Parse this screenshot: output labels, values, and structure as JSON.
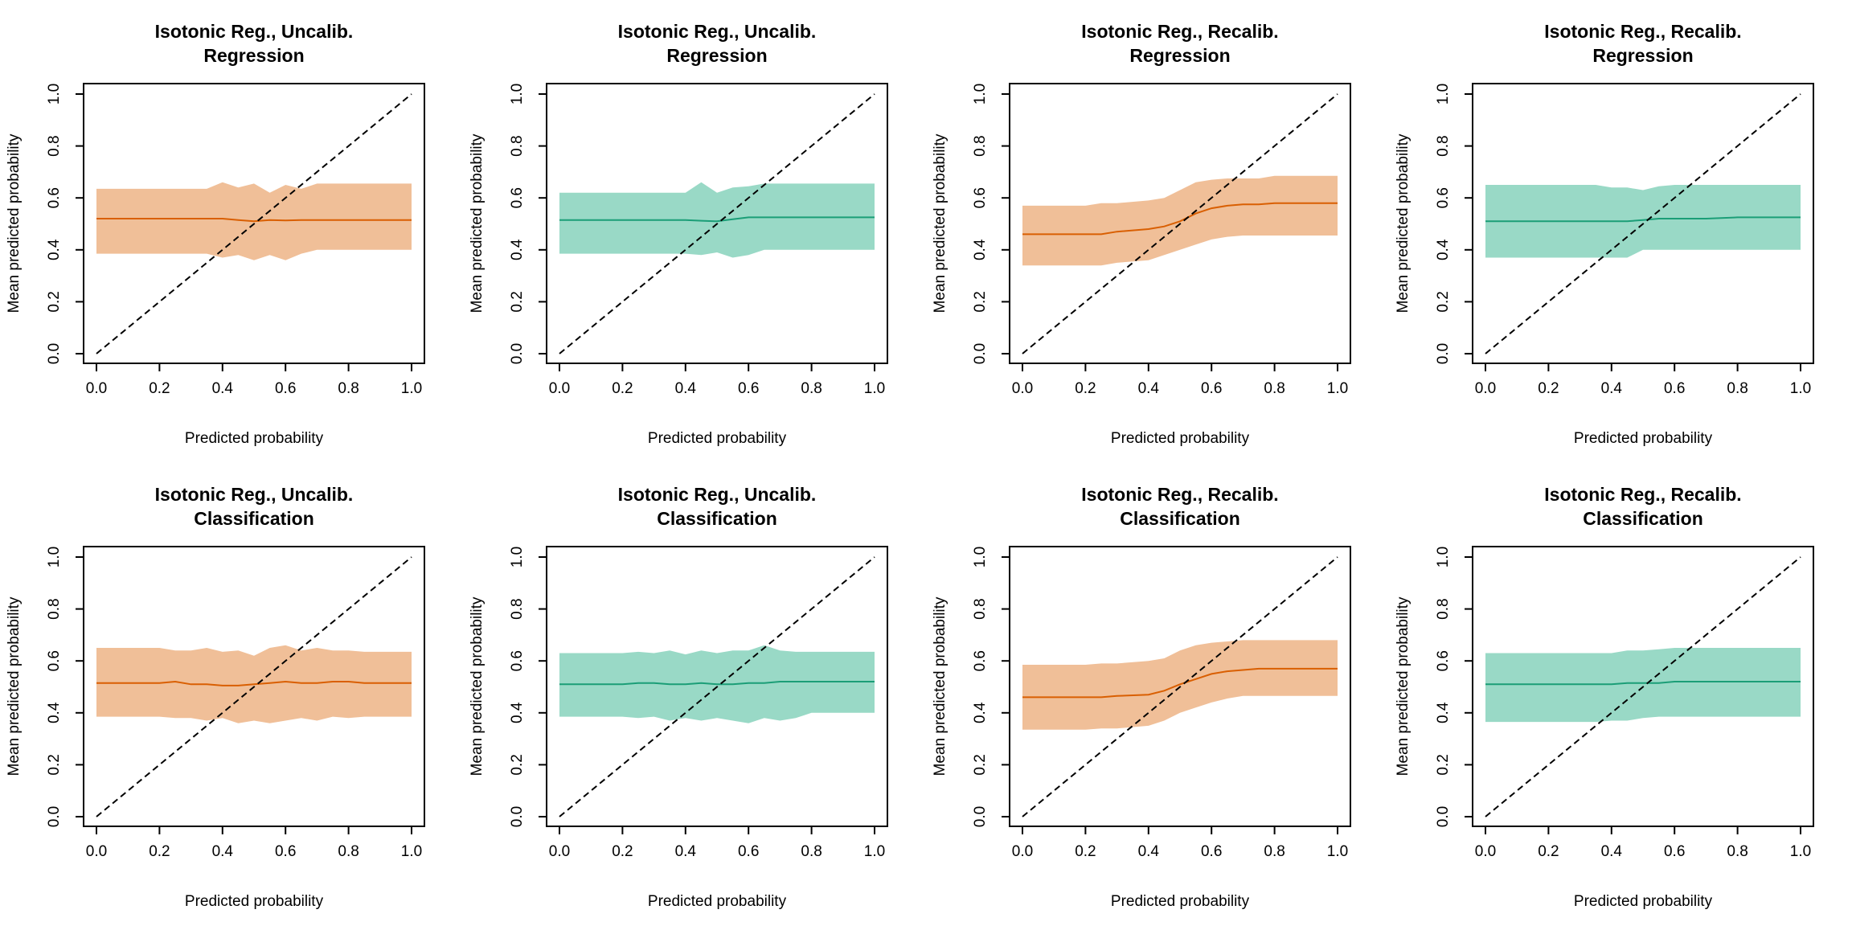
{
  "chart_data": [
    {
      "type": "line",
      "title": "Isotonic Reg., Uncalib.",
      "subtitle": "Regression",
      "xlabel": "Predicted probability",
      "ylabel": "Mean predicted probability",
      "xlim": [
        0,
        1
      ],
      "ylim": [
        0,
        1
      ],
      "xticks": [
        "0.0",
        "0.2",
        "0.4",
        "0.6",
        "0.8",
        "1.0"
      ],
      "yticks": [
        "0.0",
        "0.2",
        "0.4",
        "0.6",
        "0.8",
        "1.0"
      ],
      "grid": false,
      "color": "#d95f02",
      "band_color": "#f0bf98",
      "reference_line": {
        "x": [
          0,
          1
        ],
        "y": [
          0,
          1
        ],
        "style": "dashed"
      },
      "x": [
        0.0,
        0.1,
        0.2,
        0.3,
        0.35,
        0.4,
        0.45,
        0.5,
        0.55,
        0.6,
        0.65,
        0.7,
        0.8,
        0.9,
        1.0
      ],
      "mean": [
        0.52,
        0.52,
        0.52,
        0.52,
        0.52,
        0.52,
        0.515,
        0.51,
        0.515,
        0.513,
        0.515,
        0.515,
        0.515,
        0.515,
        0.515
      ],
      "lower": [
        0.385,
        0.385,
        0.385,
        0.385,
        0.385,
        0.37,
        0.38,
        0.36,
        0.38,
        0.36,
        0.385,
        0.4,
        0.4,
        0.4,
        0.4
      ],
      "upper": [
        0.635,
        0.635,
        0.635,
        0.635,
        0.635,
        0.66,
        0.64,
        0.655,
        0.62,
        0.65,
        0.635,
        0.655,
        0.655,
        0.655,
        0.655
      ]
    },
    {
      "type": "line",
      "title": "Isotonic Reg., Uncalib.",
      "subtitle": "Regression",
      "xlabel": "Predicted probability",
      "ylabel": "Mean predicted probability",
      "xlim": [
        0,
        1
      ],
      "ylim": [
        0,
        1
      ],
      "xticks": [
        "0.0",
        "0.2",
        "0.4",
        "0.6",
        "0.8",
        "1.0"
      ],
      "yticks": [
        "0.0",
        "0.2",
        "0.4",
        "0.6",
        "0.8",
        "1.0"
      ],
      "grid": false,
      "color": "#1b9e77",
      "band_color": "#99d9c6",
      "reference_line": {
        "x": [
          0,
          1
        ],
        "y": [
          0,
          1
        ],
        "style": "dashed"
      },
      "x": [
        0.0,
        0.1,
        0.2,
        0.3,
        0.4,
        0.45,
        0.5,
        0.55,
        0.6,
        0.65,
        0.7,
        0.8,
        0.9,
        1.0
      ],
      "mean": [
        0.515,
        0.515,
        0.515,
        0.515,
        0.515,
        0.512,
        0.51,
        0.518,
        0.525,
        0.525,
        0.525,
        0.525,
        0.525,
        0.525
      ],
      "lower": [
        0.385,
        0.385,
        0.385,
        0.385,
        0.385,
        0.38,
        0.39,
        0.37,
        0.38,
        0.4,
        0.4,
        0.4,
        0.4,
        0.4
      ],
      "upper": [
        0.62,
        0.62,
        0.62,
        0.62,
        0.62,
        0.66,
        0.62,
        0.64,
        0.645,
        0.655,
        0.655,
        0.655,
        0.655,
        0.655
      ]
    },
    {
      "type": "line",
      "title": "Isotonic Reg., Recalib.",
      "subtitle": "Regression",
      "xlabel": "Predicted probability",
      "ylabel": "Mean predicted probability",
      "xlim": [
        0,
        1
      ],
      "ylim": [
        0,
        1
      ],
      "xticks": [
        "0.0",
        "0.2",
        "0.4",
        "0.6",
        "0.8",
        "1.0"
      ],
      "yticks": [
        "0.0",
        "0.2",
        "0.4",
        "0.6",
        "0.8",
        "1.0"
      ],
      "grid": false,
      "color": "#d95f02",
      "band_color": "#f0bf98",
      "reference_line": {
        "x": [
          0,
          1
        ],
        "y": [
          0,
          1
        ],
        "style": "dashed"
      },
      "x": [
        0.0,
        0.1,
        0.2,
        0.25,
        0.3,
        0.4,
        0.45,
        0.5,
        0.55,
        0.6,
        0.65,
        0.7,
        0.75,
        0.8,
        0.9,
        1.0
      ],
      "mean": [
        0.46,
        0.46,
        0.46,
        0.46,
        0.47,
        0.48,
        0.49,
        0.51,
        0.54,
        0.56,
        0.57,
        0.575,
        0.575,
        0.58,
        0.58,
        0.58
      ],
      "lower": [
        0.34,
        0.34,
        0.34,
        0.34,
        0.35,
        0.36,
        0.38,
        0.4,
        0.42,
        0.44,
        0.45,
        0.455,
        0.455,
        0.455,
        0.455,
        0.455
      ],
      "upper": [
        0.57,
        0.57,
        0.57,
        0.58,
        0.58,
        0.59,
        0.6,
        0.63,
        0.66,
        0.67,
        0.675,
        0.675,
        0.675,
        0.685,
        0.685,
        0.685
      ]
    },
    {
      "type": "line",
      "title": "Isotonic Reg., Recalib.",
      "subtitle": "Regression",
      "xlabel": "Predicted probability",
      "ylabel": "Mean predicted probability",
      "xlim": [
        0,
        1
      ],
      "ylim": [
        0,
        1
      ],
      "xticks": [
        "0.0",
        "0.2",
        "0.4",
        "0.6",
        "0.8",
        "1.0"
      ],
      "yticks": [
        "0.0",
        "0.2",
        "0.4",
        "0.6",
        "0.8",
        "1.0"
      ],
      "grid": false,
      "color": "#1b9e77",
      "band_color": "#99d9c6",
      "reference_line": {
        "x": [
          0,
          1
        ],
        "y": [
          0,
          1
        ],
        "style": "dashed"
      },
      "x": [
        0.0,
        0.1,
        0.2,
        0.3,
        0.35,
        0.4,
        0.45,
        0.5,
        0.55,
        0.6,
        0.7,
        0.8,
        0.9,
        1.0
      ],
      "mean": [
        0.51,
        0.51,
        0.51,
        0.51,
        0.51,
        0.51,
        0.51,
        0.515,
        0.52,
        0.52,
        0.52,
        0.525,
        0.525,
        0.525
      ],
      "lower": [
        0.37,
        0.37,
        0.37,
        0.37,
        0.37,
        0.37,
        0.37,
        0.4,
        0.4,
        0.4,
        0.4,
        0.4,
        0.4,
        0.4
      ],
      "upper": [
        0.65,
        0.65,
        0.65,
        0.65,
        0.65,
        0.64,
        0.64,
        0.63,
        0.645,
        0.65,
        0.65,
        0.65,
        0.65,
        0.65
      ]
    },
    {
      "type": "line",
      "title": "Isotonic Reg., Uncalib.",
      "subtitle": "Classification",
      "xlabel": "Predicted probability",
      "ylabel": "Mean predicted probability",
      "xlim": [
        0,
        1
      ],
      "ylim": [
        0,
        1
      ],
      "xticks": [
        "0.0",
        "0.2",
        "0.4",
        "0.6",
        "0.8",
        "1.0"
      ],
      "yticks": [
        "0.0",
        "0.2",
        "0.4",
        "0.6",
        "0.8",
        "1.0"
      ],
      "grid": false,
      "color": "#d95f02",
      "band_color": "#f0bf98",
      "reference_line": {
        "x": [
          0,
          1
        ],
        "y": [
          0,
          1
        ],
        "style": "dashed"
      },
      "x": [
        0.0,
        0.1,
        0.2,
        0.25,
        0.3,
        0.35,
        0.4,
        0.45,
        0.5,
        0.55,
        0.6,
        0.65,
        0.7,
        0.75,
        0.8,
        0.85,
        0.9,
        1.0
      ],
      "mean": [
        0.515,
        0.515,
        0.515,
        0.52,
        0.51,
        0.51,
        0.505,
        0.505,
        0.51,
        0.515,
        0.52,
        0.515,
        0.515,
        0.52,
        0.52,
        0.515,
        0.515,
        0.515
      ],
      "lower": [
        0.385,
        0.385,
        0.385,
        0.38,
        0.38,
        0.37,
        0.38,
        0.36,
        0.37,
        0.36,
        0.37,
        0.38,
        0.37,
        0.385,
        0.38,
        0.385,
        0.385,
        0.385
      ],
      "upper": [
        0.65,
        0.65,
        0.65,
        0.64,
        0.64,
        0.65,
        0.635,
        0.64,
        0.62,
        0.65,
        0.66,
        0.64,
        0.65,
        0.64,
        0.64,
        0.635,
        0.635,
        0.635
      ]
    },
    {
      "type": "line",
      "title": "Isotonic Reg., Uncalib.",
      "subtitle": "Classification",
      "xlabel": "Predicted probability",
      "ylabel": "Mean predicted probability",
      "xlim": [
        0,
        1
      ],
      "ylim": [
        0,
        1
      ],
      "xticks": [
        "0.0",
        "0.2",
        "0.4",
        "0.6",
        "0.8",
        "1.0"
      ],
      "yticks": [
        "0.0",
        "0.2",
        "0.4",
        "0.6",
        "0.8",
        "1.0"
      ],
      "grid": false,
      "color": "#1b9e77",
      "band_color": "#99d9c6",
      "reference_line": {
        "x": [
          0,
          1
        ],
        "y": [
          0,
          1
        ],
        "style": "dashed"
      },
      "x": [
        0.0,
        0.1,
        0.2,
        0.25,
        0.3,
        0.35,
        0.4,
        0.45,
        0.5,
        0.55,
        0.6,
        0.65,
        0.7,
        0.75,
        0.8,
        0.9,
        1.0
      ],
      "mean": [
        0.51,
        0.51,
        0.51,
        0.515,
        0.515,
        0.51,
        0.51,
        0.515,
        0.51,
        0.51,
        0.515,
        0.515,
        0.52,
        0.52,
        0.52,
        0.52,
        0.52
      ],
      "lower": [
        0.385,
        0.385,
        0.385,
        0.38,
        0.385,
        0.37,
        0.38,
        0.37,
        0.38,
        0.37,
        0.36,
        0.38,
        0.37,
        0.38,
        0.4,
        0.4,
        0.4
      ],
      "upper": [
        0.63,
        0.63,
        0.63,
        0.635,
        0.63,
        0.64,
        0.625,
        0.64,
        0.63,
        0.64,
        0.64,
        0.66,
        0.64,
        0.635,
        0.635,
        0.635,
        0.635
      ]
    },
    {
      "type": "line",
      "title": "Isotonic Reg., Recalib.",
      "subtitle": "Classification",
      "xlabel": "Predicted probability",
      "ylabel": "Mean predicted probability",
      "xlim": [
        0,
        1
      ],
      "ylim": [
        0,
        1
      ],
      "xticks": [
        "0.0",
        "0.2",
        "0.4",
        "0.6",
        "0.8",
        "1.0"
      ],
      "yticks": [
        "0.0",
        "0.2",
        "0.4",
        "0.6",
        "0.8",
        "1.0"
      ],
      "grid": false,
      "color": "#d95f02",
      "band_color": "#f0bf98",
      "reference_line": {
        "x": [
          0,
          1
        ],
        "y": [
          0,
          1
        ],
        "style": "dashed"
      },
      "x": [
        0.0,
        0.1,
        0.2,
        0.25,
        0.3,
        0.4,
        0.45,
        0.5,
        0.55,
        0.6,
        0.65,
        0.7,
        0.75,
        0.8,
        0.9,
        1.0
      ],
      "mean": [
        0.46,
        0.46,
        0.46,
        0.46,
        0.465,
        0.47,
        0.485,
        0.51,
        0.53,
        0.55,
        0.56,
        0.565,
        0.57,
        0.57,
        0.57,
        0.57
      ],
      "lower": [
        0.335,
        0.335,
        0.335,
        0.34,
        0.34,
        0.35,
        0.37,
        0.4,
        0.42,
        0.44,
        0.455,
        0.465,
        0.465,
        0.465,
        0.465,
        0.465
      ],
      "upper": [
        0.585,
        0.585,
        0.585,
        0.59,
        0.59,
        0.6,
        0.61,
        0.64,
        0.66,
        0.67,
        0.675,
        0.68,
        0.68,
        0.68,
        0.68,
        0.68
      ]
    },
    {
      "type": "line",
      "title": "Isotonic Reg., Recalib.",
      "subtitle": "Classification",
      "xlabel": "Predicted probability",
      "ylabel": "Mean predicted probability",
      "xlim": [
        0,
        1
      ],
      "ylim": [
        0,
        1
      ],
      "xticks": [
        "0.0",
        "0.2",
        "0.4",
        "0.6",
        "0.8",
        "1.0"
      ],
      "yticks": [
        "0.0",
        "0.2",
        "0.4",
        "0.6",
        "0.8",
        "1.0"
      ],
      "grid": false,
      "color": "#1b9e77",
      "band_color": "#99d9c6",
      "reference_line": {
        "x": [
          0,
          1
        ],
        "y": [
          0,
          1
        ],
        "style": "dashed"
      },
      "x": [
        0.0,
        0.1,
        0.2,
        0.3,
        0.35,
        0.4,
        0.45,
        0.5,
        0.55,
        0.6,
        0.7,
        0.8,
        0.9,
        1.0
      ],
      "mean": [
        0.51,
        0.51,
        0.51,
        0.51,
        0.51,
        0.51,
        0.515,
        0.515,
        0.515,
        0.52,
        0.52,
        0.52,
        0.52,
        0.52
      ],
      "lower": [
        0.365,
        0.365,
        0.365,
        0.365,
        0.365,
        0.37,
        0.37,
        0.38,
        0.385,
        0.385,
        0.385,
        0.385,
        0.385,
        0.385
      ],
      "upper": [
        0.63,
        0.63,
        0.63,
        0.63,
        0.63,
        0.63,
        0.64,
        0.64,
        0.645,
        0.65,
        0.65,
        0.65,
        0.65,
        0.65
      ]
    }
  ]
}
